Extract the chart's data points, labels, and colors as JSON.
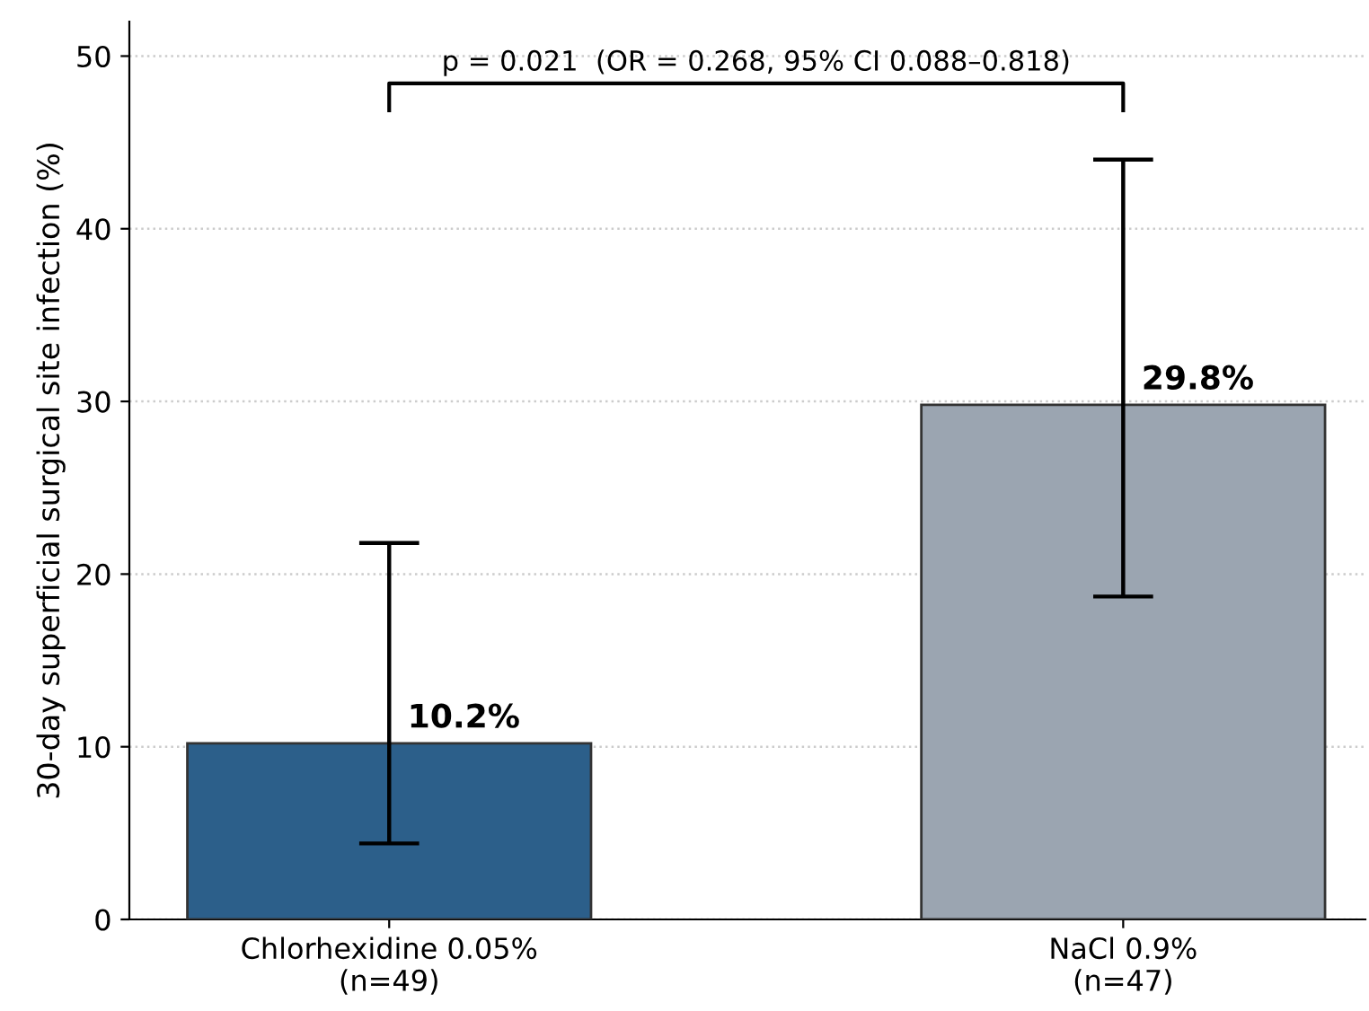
{
  "chart_data": {
    "type": "bar",
    "ylabel": "30-day superficial surgical site infection (%)",
    "categories": [
      "Chlorhexidine 0.05%\n(n=49)",
      "NaCl 0.9%\n(n=47)"
    ],
    "values": [
      10.2,
      29.8
    ],
    "colors": [
      "#2c5f8a",
      "#9ba5b1"
    ],
    "errors": [
      [
        4.4,
        21.8
      ],
      [
        18.7,
        44.0
      ]
    ],
    "value_labels": [
      "10.2%",
      "29.8%"
    ],
    "annotations": [
      "p = 0.021  (OR = 0.268, 95% CI 0.088–0.818)"
    ],
    "ylim": [
      0,
      52
    ],
    "yticks": [
      0,
      10,
      20,
      30,
      40,
      50
    ],
    "grid": "y"
  }
}
